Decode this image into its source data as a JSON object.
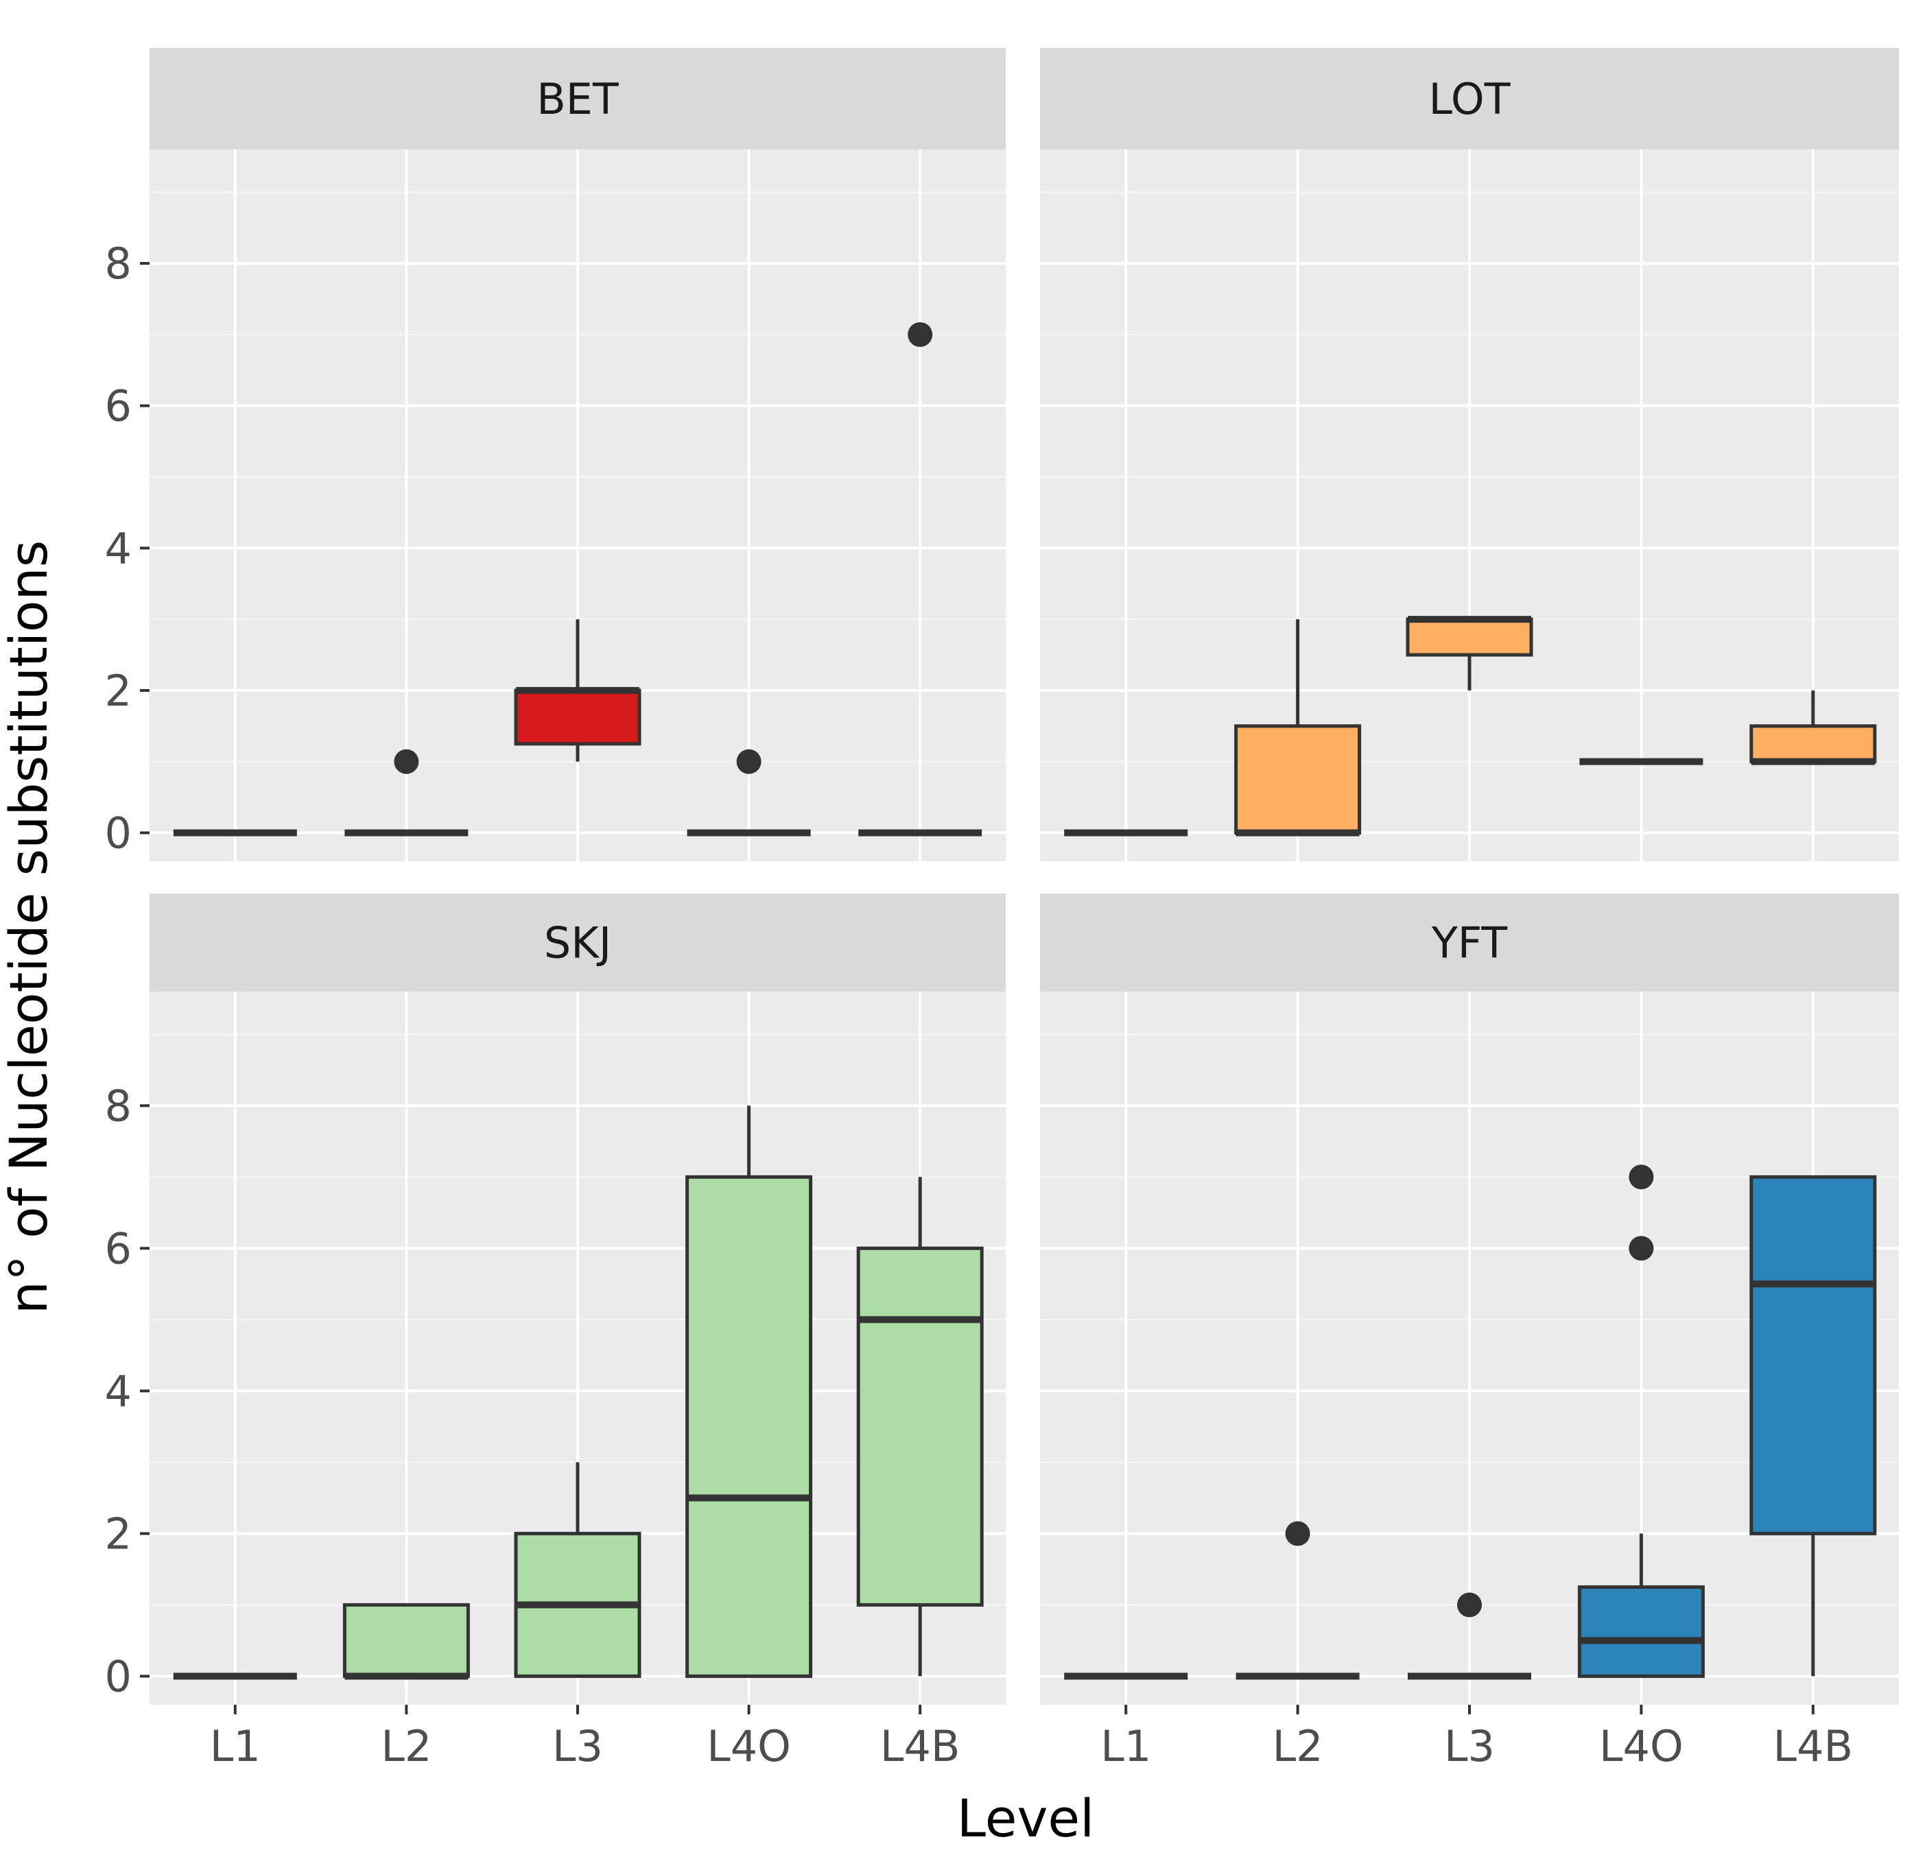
{
  "chart_data": {
    "type": "boxplot",
    "facets": [
      "BET",
      "LOT",
      "SKJ",
      "YFT"
    ],
    "categories": [
      "L1",
      "L2",
      "L3",
      "L4O",
      "L4B"
    ],
    "xlabel": "Level",
    "ylabel": "n° of Nucleotide substitutions",
    "ylim": [
      -0.4,
      9.6
    ],
    "yticks": [
      0,
      2,
      4,
      6,
      8
    ],
    "colors": {
      "BET": "#d7191c",
      "LOT": "#fdae61",
      "SKJ": "#abdda4",
      "YFT": "#2b83ba"
    },
    "panels": [
      {
        "facet": "BET",
        "boxes": [
          {
            "category": "L1",
            "min": 0,
            "q1": 0,
            "median": 0,
            "q3": 0,
            "max": 0,
            "outliers": []
          },
          {
            "category": "L2",
            "min": 0,
            "q1": 0,
            "median": 0,
            "q3": 0,
            "max": 0,
            "outliers": [
              1
            ]
          },
          {
            "category": "L3",
            "min": 1,
            "q1": 1.25,
            "median": 2,
            "q3": 2,
            "max": 3,
            "outliers": []
          },
          {
            "category": "L4O",
            "min": 0,
            "q1": 0,
            "median": 0,
            "q3": 0,
            "max": 0,
            "outliers": [
              1
            ]
          },
          {
            "category": "L4B",
            "min": 0,
            "q1": 0,
            "median": 0,
            "q3": 0,
            "max": 0,
            "outliers": [
              7
            ]
          }
        ]
      },
      {
        "facet": "LOT",
        "boxes": [
          {
            "category": "L1",
            "min": 0,
            "q1": 0,
            "median": 0,
            "q3": 0,
            "max": 0,
            "outliers": []
          },
          {
            "category": "L2",
            "min": 0,
            "q1": 0,
            "median": 0,
            "q3": 1.5,
            "max": 3,
            "outliers": []
          },
          {
            "category": "L3",
            "min": 2,
            "q1": 2.5,
            "median": 3,
            "q3": 3,
            "max": 3,
            "outliers": []
          },
          {
            "category": "L4O",
            "min": 1,
            "q1": 1,
            "median": 1,
            "q3": 1,
            "max": 1,
            "outliers": []
          },
          {
            "category": "L4B",
            "min": 1,
            "q1": 1,
            "median": 1,
            "q3": 1.5,
            "max": 2,
            "outliers": []
          }
        ]
      },
      {
        "facet": "SKJ",
        "boxes": [
          {
            "category": "L1",
            "min": 0,
            "q1": 0,
            "median": 0,
            "q3": 0,
            "max": 0,
            "outliers": []
          },
          {
            "category": "L2",
            "min": 0,
            "q1": 0,
            "median": 0,
            "q3": 1,
            "max": 1,
            "outliers": []
          },
          {
            "category": "L3",
            "min": 0,
            "q1": 0,
            "median": 1,
            "q3": 2,
            "max": 3,
            "outliers": []
          },
          {
            "category": "L4O",
            "min": 0,
            "q1": 0,
            "median": 2.5,
            "q3": 7,
            "max": 8,
            "outliers": []
          },
          {
            "category": "L4B",
            "min": 0,
            "q1": 1,
            "median": 5,
            "q3": 6,
            "max": 7,
            "outliers": []
          }
        ]
      },
      {
        "facet": "YFT",
        "boxes": [
          {
            "category": "L1",
            "min": 0,
            "q1": 0,
            "median": 0,
            "q3": 0,
            "max": 0,
            "outliers": []
          },
          {
            "category": "L2",
            "min": 0,
            "q1": 0,
            "median": 0,
            "q3": 0,
            "max": 0,
            "outliers": [
              2
            ]
          },
          {
            "category": "L3",
            "min": 0,
            "q1": 0,
            "median": 0,
            "q3": 0,
            "max": 0,
            "outliers": [
              1
            ]
          },
          {
            "category": "L4O",
            "min": 0,
            "q1": 0,
            "median": 0.5,
            "q3": 1.25,
            "max": 2,
            "outliers": [
              6,
              7
            ]
          },
          {
            "category": "L4B",
            "min": 0,
            "q1": 2,
            "median": 5.5,
            "q3": 7,
            "max": 7,
            "outliers": []
          }
        ]
      }
    ]
  }
}
